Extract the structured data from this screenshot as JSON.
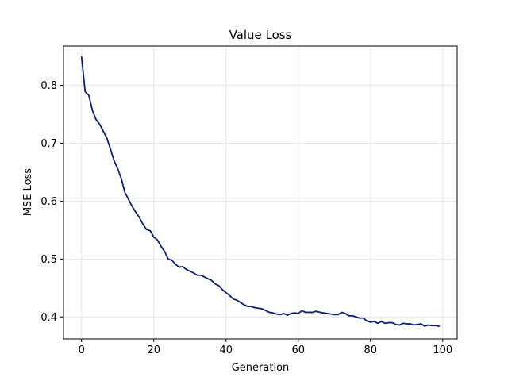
{
  "chart_data": {
    "type": "line",
    "title": "Value Loss",
    "xlabel": "Generation",
    "ylabel": "MSE Loss",
    "xlim": [
      -5,
      104
    ],
    "ylim": [
      0.362,
      0.868
    ],
    "xticks": [
      0,
      20,
      40,
      60,
      80,
      100
    ],
    "yticks": [
      0.4,
      0.5,
      0.6,
      0.7,
      0.8
    ],
    "xtick_labels": [
      "0",
      "20",
      "40",
      "60",
      "80",
      "100"
    ],
    "ytick_labels": [
      "0.4",
      "0.5",
      "0.6",
      "0.7",
      "0.8"
    ],
    "grid": true,
    "color": "#0b1f7a",
    "series": [
      {
        "x": [
          0,
          1,
          2,
          3,
          4,
          5,
          6,
          7,
          8,
          9,
          10,
          11,
          12,
          13,
          14,
          15,
          16,
          17,
          18,
          19,
          20,
          21,
          22,
          23,
          24,
          25,
          26,
          27,
          28,
          29,
          30,
          31,
          32,
          33,
          34,
          35,
          36,
          37,
          38,
          39,
          40,
          41,
          42,
          43,
          44,
          45,
          46,
          47,
          48,
          49,
          50,
          51,
          52,
          53,
          54,
          55,
          56,
          57,
          58,
          59,
          60,
          61,
          62,
          63,
          64,
          65,
          66,
          67,
          68,
          69,
          70,
          71,
          72,
          73,
          74,
          75,
          76,
          77,
          78,
          79,
          80,
          81,
          82,
          83,
          84,
          85,
          86,
          87,
          88,
          89,
          90,
          91,
          92,
          93,
          94,
          95,
          96,
          97,
          98,
          99
        ],
        "values": [
          0.849,
          0.789,
          0.783,
          0.757,
          0.741,
          0.733,
          0.721,
          0.709,
          0.69,
          0.67,
          0.656,
          0.639,
          0.615,
          0.603,
          0.591,
          0.581,
          0.572,
          0.56,
          0.551,
          0.549,
          0.538,
          0.533,
          0.522,
          0.513,
          0.5,
          0.498,
          0.491,
          0.486,
          0.487,
          0.482,
          0.479,
          0.476,
          0.472,
          0.472,
          0.469,
          0.466,
          0.463,
          0.457,
          0.454,
          0.447,
          0.442,
          0.437,
          0.431,
          0.429,
          0.425,
          0.421,
          0.418,
          0.418,
          0.416,
          0.415,
          0.414,
          0.411,
          0.408,
          0.407,
          0.405,
          0.404,
          0.406,
          0.403,
          0.406,
          0.407,
          0.406,
          0.411,
          0.408,
          0.408,
          0.408,
          0.41,
          0.408,
          0.407,
          0.406,
          0.405,
          0.404,
          0.404,
          0.408,
          0.406,
          0.402,
          0.402,
          0.4,
          0.398,
          0.398,
          0.393,
          0.391,
          0.392,
          0.389,
          0.392,
          0.389,
          0.39,
          0.39,
          0.387,
          0.386,
          0.389,
          0.388,
          0.388,
          0.386,
          0.387,
          0.388,
          0.384,
          0.386,
          0.385,
          0.385,
          0.384
        ]
      }
    ]
  }
}
